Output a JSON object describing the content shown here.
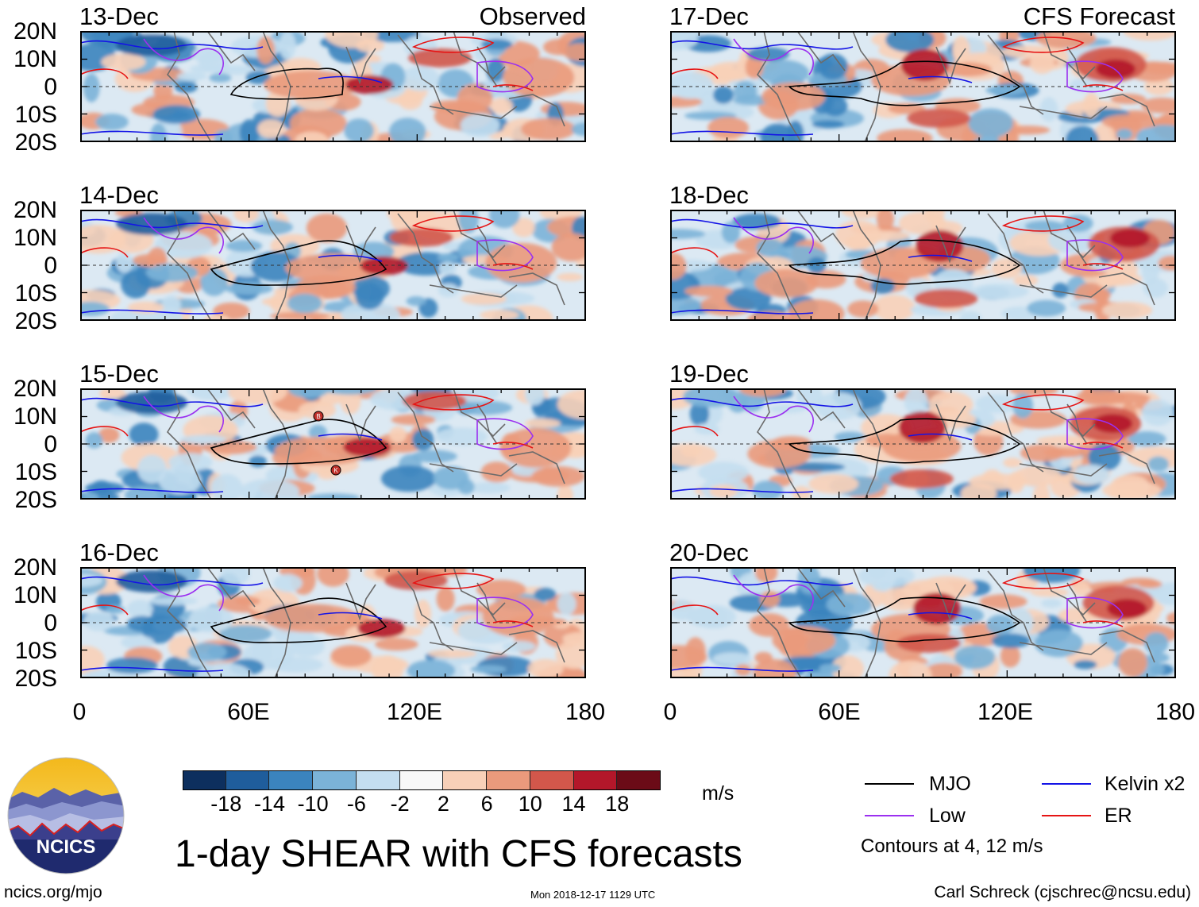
{
  "headers": {
    "left": "Observed",
    "right": "CFS Forecast"
  },
  "panels": {
    "left": [
      {
        "date": "13-Dec",
        "mjo_enclosed": true
      },
      {
        "date": "14-Dec",
        "mjo_enclosed": true
      },
      {
        "date": "15-Dec",
        "mjo_enclosed": true
      },
      {
        "date": "16-Dec",
        "mjo_enclosed": true
      }
    ],
    "right": [
      {
        "date": "17-Dec"
      },
      {
        "date": "18-Dec"
      },
      {
        "date": "19-Dec"
      },
      {
        "date": "20-Dec"
      }
    ]
  },
  "lat_labels": [
    "20N",
    "10N",
    "0",
    "10S",
    "20S"
  ],
  "lon_labels": [
    "0",
    "60E",
    "120E",
    "180"
  ],
  "colorbar": {
    "ticks": [
      "-18",
      "-14",
      "-10",
      "-6",
      "-2",
      "2",
      "6",
      "10",
      "14",
      "18"
    ],
    "colors": [
      "#0d2f5e",
      "#1f5d9c",
      "#3b84be",
      "#7bb3d8",
      "#c4def0",
      "#f8f8f8",
      "#f8d0b8",
      "#ea9a7c",
      "#d2574b",
      "#b3172a",
      "#6b0b17"
    ],
    "units": "m/s"
  },
  "title": "1-day SHEAR with CFS forecasts",
  "legend": {
    "items": [
      {
        "label": "MJO",
        "color": "#000000"
      },
      {
        "label": "Kelvin x2",
        "color": "#1414e6"
      },
      {
        "label": "Low",
        "color": "#9b30f0"
      },
      {
        "label": "ER",
        "color": "#e61414"
      }
    ],
    "note": "Contours at 4, 12 m/s"
  },
  "logo": {
    "text": "NCICS"
  },
  "storm_markers": [
    "B",
    "K"
  ],
  "footer": {
    "left": "ncics.org/mjo",
    "middle": "Mon 2018-12-17 1129 UTC",
    "right": "Carl Schreck (cjschrec@ncsu.edu)"
  }
}
